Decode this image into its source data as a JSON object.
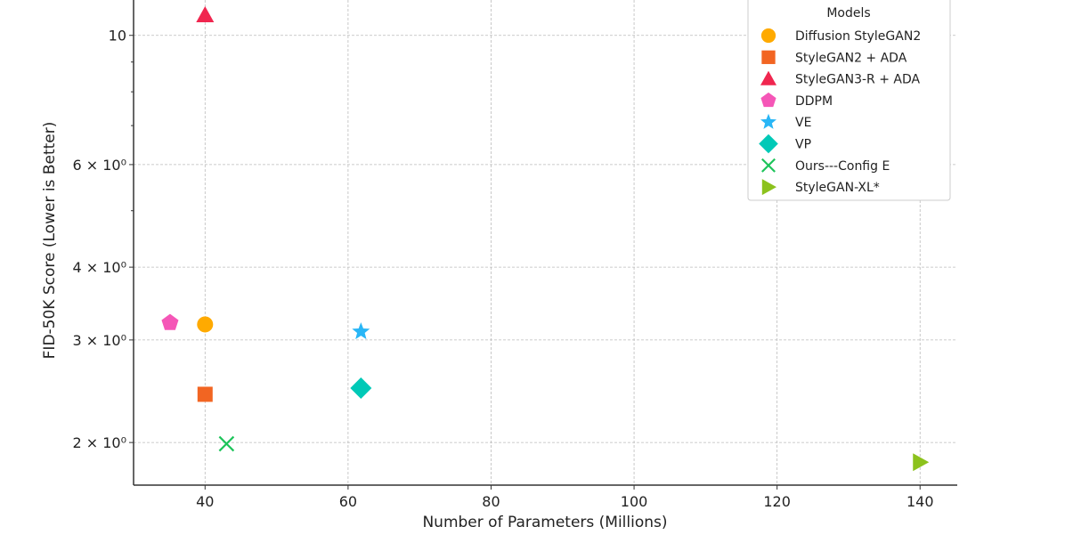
{
  "chart_data": {
    "type": "scatter",
    "title": "",
    "xlabel": "Number of Parameters (Millions)",
    "ylabel": "FID-50K Score (Lower is Better)",
    "xlim": [
      30,
      145.2
    ],
    "ylim": [
      1.69,
      11.5
    ],
    "yscale": "log",
    "grid": true,
    "x_ticks": [
      40,
      60,
      80,
      100,
      120,
      140
    ],
    "x_tick_labels": [
      "40",
      "60",
      "80",
      "100",
      "120",
      "140"
    ],
    "y_ticks": [
      10,
      6,
      4,
      3,
      2
    ],
    "y_tick_labels": [
      "10",
      "6 × 10⁰",
      "4 × 10⁰",
      "3 × 10⁰",
      "2 × 10⁰"
    ],
    "y_minor_ticks": [
      9,
      8,
      7,
      5
    ],
    "legend": {
      "title": "Models",
      "placement": "top-right"
    },
    "series": [
      {
        "name": "Diffusion StyleGAN2",
        "marker": "circle",
        "color": "#FFAA00",
        "x": 40,
        "y": 3.19
      },
      {
        "name": "StyleGAN2 + ADA",
        "marker": "square",
        "color": "#F26522",
        "x": 40,
        "y": 2.42
      },
      {
        "name": "StyleGAN3-R + ADA",
        "marker": "triangle-up",
        "color": "#F0264F",
        "x": 40,
        "y": 10.83
      },
      {
        "name": "DDPM",
        "marker": "pentagon",
        "color": "#F556B7",
        "x": 35.1,
        "y": 3.21
      },
      {
        "name": "VE",
        "marker": "star",
        "color": "#29B6F6",
        "x": 61.8,
        "y": 3.1
      },
      {
        "name": "VP",
        "marker": "diamond",
        "color": "#00C9B7",
        "x": 61.8,
        "y": 2.48
      },
      {
        "name": "Ours---Config E",
        "marker": "x",
        "color": "#1DC45A",
        "x": 43.0,
        "y": 1.99
      },
      {
        "name": "StyleGAN-XL*",
        "marker": "triangle-right",
        "color": "#8CC21D",
        "x": 140,
        "y": 1.85
      }
    ]
  }
}
